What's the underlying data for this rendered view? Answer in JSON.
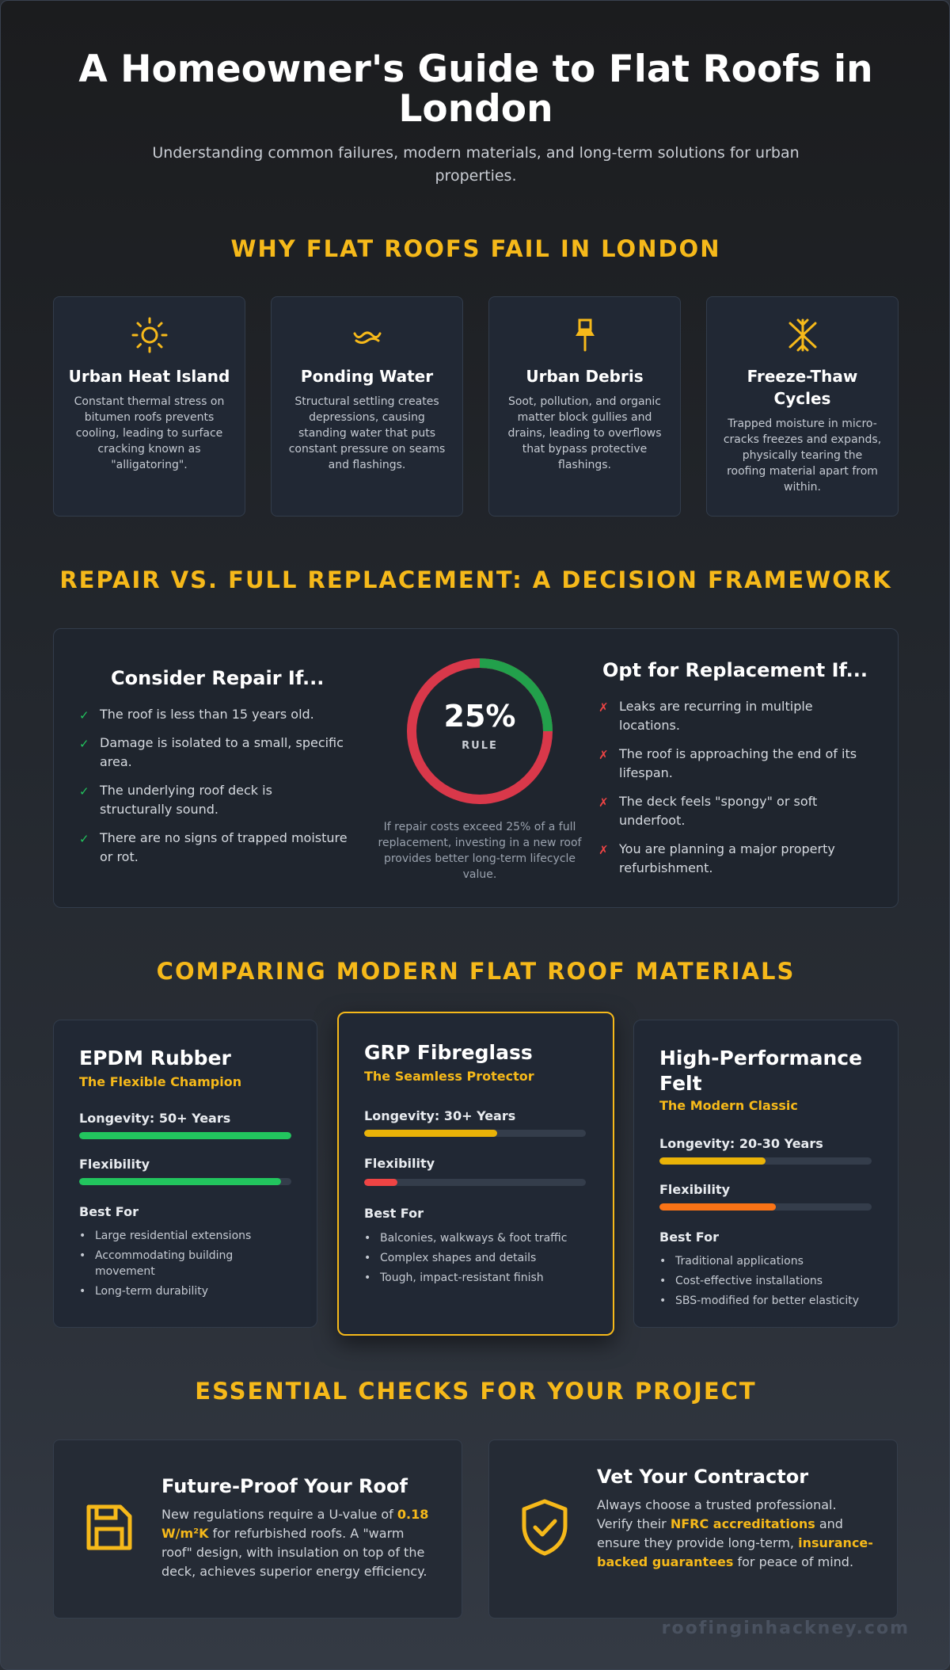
{
  "hero": {
    "title": "A Homeowner's Guide to Flat Roofs in London",
    "subtitle": "Understanding common failures, modern materials, and long-term solutions for urban properties."
  },
  "failures": {
    "title": "WHY FLAT ROOFS FAIL IN LONDON",
    "items": [
      {
        "icon": "sun-icon",
        "title": "Urban Heat Island",
        "text": "Constant thermal stress on bitumen roofs prevents cooling, leading to surface cracking known as \"alligatoring\"."
      },
      {
        "icon": "water-wave-icon",
        "title": "Ponding Water",
        "text": "Structural settling creates depressions, causing standing water that puts constant pressure on seams and flashings."
      },
      {
        "icon": "pin-icon",
        "title": "Urban Debris",
        "text": "Soot, pollution, and organic matter block gullies and drains, leading to overflows that bypass protective flashings."
      },
      {
        "icon": "snowflake-icon",
        "title": "Freeze-Thaw Cycles",
        "text": "Trapped moisture in micro-cracks freezes and expands, physically tearing the roofing material apart from within."
      }
    ]
  },
  "decision": {
    "title": "REPAIR VS. FULL REPLACEMENT: A DECISION FRAMEWORK",
    "repair_title": "Consider Repair If...",
    "repair_items": [
      "The roof is less than 15 years old.",
      "Damage is isolated to a small, specific area.",
      "The underlying roof deck is structurally sound.",
      "There are no signs of trapped moisture or rot."
    ],
    "replace_title": "Opt for Replacement If...",
    "replace_items": [
      "Leaks are recurring in multiple locations.",
      "The roof is approaching the end of its lifespan.",
      "The deck feels \"spongy\" or soft underfoot.",
      "You are planning a major property refurbishment."
    ],
    "rule_value": "25%",
    "rule_label": "RULE",
    "rule_fraction": 0.25,
    "rule_note": "If repair costs exceed 25% of a full replacement, investing in a new roof provides better long-term lifecycle value.",
    "colors": {
      "repair": "#22a04b",
      "replace": "#d9384a"
    }
  },
  "materials": {
    "title": "COMPARING MODERN FLAT ROOF MATERIALS",
    "items": [
      {
        "name": "EPDM Rubber",
        "tagline": "The Flexible Champion",
        "longevity_label": "Longevity: 50+ Years",
        "longevity_level": 1.0,
        "longevity_color": "#22c55e",
        "flex_label": "Flexibility",
        "flex_level": 0.95,
        "flex_color": "#22c55e",
        "best_for_title": "Best For",
        "best_for": [
          "Large residential extensions",
          "Accommodating building movement",
          "Long-term durability"
        ]
      },
      {
        "name": "GRP Fibreglass",
        "tagline": "The Seamless Protector",
        "longevity_label": "Longevity: 30+ Years",
        "longevity_level": 0.6,
        "longevity_color": "#eab308",
        "flex_label": "Flexibility",
        "flex_level": 0.15,
        "flex_color": "#ef4444",
        "best_for_title": "Best For",
        "best_for": [
          "Balconies, walkways & foot traffic",
          "Complex shapes and details",
          "Tough, impact-resistant finish"
        ]
      },
      {
        "name": "High-Performance Felt",
        "tagline": "The Modern Classic",
        "longevity_label": "Longevity: 20-30 Years",
        "longevity_level": 0.5,
        "longevity_color": "#eab308",
        "flex_label": "Flexibility",
        "flex_level": 0.55,
        "flex_color": "#f97316",
        "best_for_title": "Best For",
        "best_for": [
          "Traditional applications",
          "Cost-effective installations",
          "SBS-modified for better elasticity"
        ]
      }
    ]
  },
  "checks": {
    "title": "ESSENTIAL CHECKS FOR YOUR PROJECT",
    "future": {
      "title": "Future-Proof Your Roof",
      "text_1": "New regulations require a U-value of ",
      "highlight_1": "0.18 W/m²K",
      "text_2": " for refurbished roofs. A \"warm roof\" design, with insulation on top of the deck, achieves superior energy efficiency."
    },
    "contractor": {
      "title": "Vet Your Contractor",
      "text_1": "Always choose a trusted professional. Verify their ",
      "highlight_1": "NFRC accreditations",
      "text_2": " and ensure they provide long-term, ",
      "highlight_2": "insurance-backed guarantees",
      "text_3": " for peace of mind."
    }
  },
  "footer": {
    "brand": "roofinginhackney.com"
  },
  "colors": {
    "accent": "#f6b91a"
  }
}
